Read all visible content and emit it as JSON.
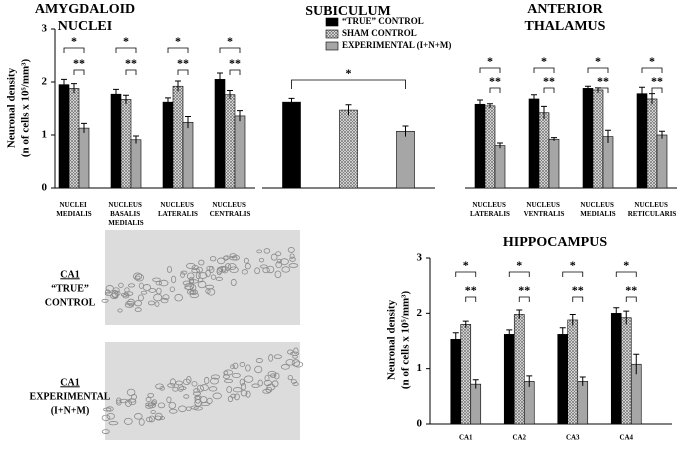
{
  "chart_data": [
    {
      "type": "bar",
      "title": [
        "AMYGDALOID",
        "NUCLEI"
      ],
      "ylabel": [
        "Neuronal density",
        "(n of cells x 10⁵/mm³)"
      ],
      "categories": [
        "NUCLEI MEDIALIS",
        "NUCLEUS BASALIS MEDIALIS",
        "NUCLEUS LATERALIS",
        "NUCLEUS CENTRALIS"
      ],
      "series": [
        {
          "color": "#000000",
          "values": [
            1.95,
            1.77,
            1.62,
            2.05
          ],
          "errors": [
            0.1,
            0.09,
            0.08,
            0.12
          ]
        },
        {
          "color": "#7a7a7a",
          "hatch": true,
          "values": [
            1.88,
            1.67,
            1.92,
            1.76
          ],
          "errors": [
            0.09,
            0.08,
            0.1,
            0.08
          ]
        },
        {
          "color": "#a6a6a6",
          "values": [
            1.13,
            0.91,
            1.24,
            1.36
          ],
          "errors": [
            0.09,
            0.07,
            0.11,
            0.1
          ]
        }
      ],
      "ylim": [
        0,
        3
      ],
      "yticks": [
        0,
        1,
        2,
        3
      ],
      "significance": [
        [
          "*",
          "**"
        ],
        [
          "*",
          "**"
        ],
        [
          "*",
          "**"
        ],
        [
          "*",
          "**"
        ]
      ]
    },
    {
      "type": "bar",
      "title": [
        "SUBICULUM"
      ],
      "categories": [
        null
      ],
      "series": [
        {
          "name": "“TRUE” CONTROL",
          "color": "#000000",
          "values": [
            1.62
          ],
          "errors": [
            0.07
          ]
        },
        {
          "name": "SHAM CONTROL",
          "color": "#7a7a7a",
          "hatch": true,
          "values": [
            1.47
          ],
          "errors": [
            0.1
          ]
        },
        {
          "name": "EXPERIMENTAL (I+N+M)",
          "color": "#a6a6a6",
          "values": [
            1.07
          ],
          "errors": [
            0.1
          ]
        }
      ],
      "ylim": [
        0,
        3
      ],
      "significance": [
        [
          "*"
        ]
      ]
    },
    {
      "type": "bar",
      "title": [
        "ANTERIOR",
        "THALAMUS"
      ],
      "categories": [
        "NUCLEUS LATERALIS",
        "NUCLEUS VENTRALIS",
        "NUCLEUS MEDIALIS",
        "NUCLEUS RETICULARIS"
      ],
      "series": [
        {
          "color": "#000000",
          "values": [
            1.58,
            1.68,
            1.88,
            1.78
          ],
          "errors": [
            0.08,
            0.08,
            0.04,
            0.12
          ]
        },
        {
          "color": "#7a7a7a",
          "hatch": true,
          "values": [
            1.55,
            1.42,
            1.85,
            1.68
          ],
          "errors": [
            0.04,
            0.12,
            0.04,
            0.1
          ]
        },
        {
          "color": "#a6a6a6",
          "values": [
            0.8,
            0.92,
            0.97,
            1.0
          ],
          "errors": [
            0.05,
            0.03,
            0.12,
            0.07
          ]
        }
      ],
      "ylim": [
        0,
        3
      ],
      "significance": [
        [
          "*",
          "**"
        ],
        [
          "*",
          "**"
        ],
        [
          "*",
          "**"
        ],
        [
          "*",
          "**"
        ]
      ]
    },
    {
      "type": "bar",
      "title": [
        "HIPPOCAMPUS"
      ],
      "ylabel": [
        "Neuronal density",
        "(n of cells x 10⁵/mm³)"
      ],
      "categories": [
        "CA1",
        "CA2",
        "CA3",
        "CA4"
      ],
      "series": [
        {
          "color": "#000000",
          "values": [
            1.53,
            1.62,
            1.62,
            2.0
          ],
          "errors": [
            0.12,
            0.08,
            0.12,
            0.1
          ]
        },
        {
          "color": "#7a7a7a",
          "hatch": true,
          "values": [
            1.8,
            1.98,
            1.88,
            1.92
          ],
          "errors": [
            0.06,
            0.08,
            0.1,
            0.12
          ]
        },
        {
          "color": "#a6a6a6",
          "values": [
            0.72,
            0.77,
            0.77,
            1.08
          ],
          "errors": [
            0.08,
            0.1,
            0.08,
            0.18
          ]
        }
      ],
      "ylim": [
        0,
        3
      ],
      "yticks": [
        0,
        1,
        2,
        3
      ],
      "significance": [
        [
          "*",
          "**"
        ],
        [
          "*",
          "**"
        ],
        [
          "*",
          "**"
        ],
        [
          "*",
          "**"
        ]
      ]
    }
  ],
  "micrographs": [
    {
      "label": "CA1",
      "caption": [
        "“TRUE”",
        "CONTROL"
      ]
    },
    {
      "label": "CA1",
      "caption": [
        "EXPERIMENTAL",
        "(I+N+M)"
      ]
    }
  ]
}
